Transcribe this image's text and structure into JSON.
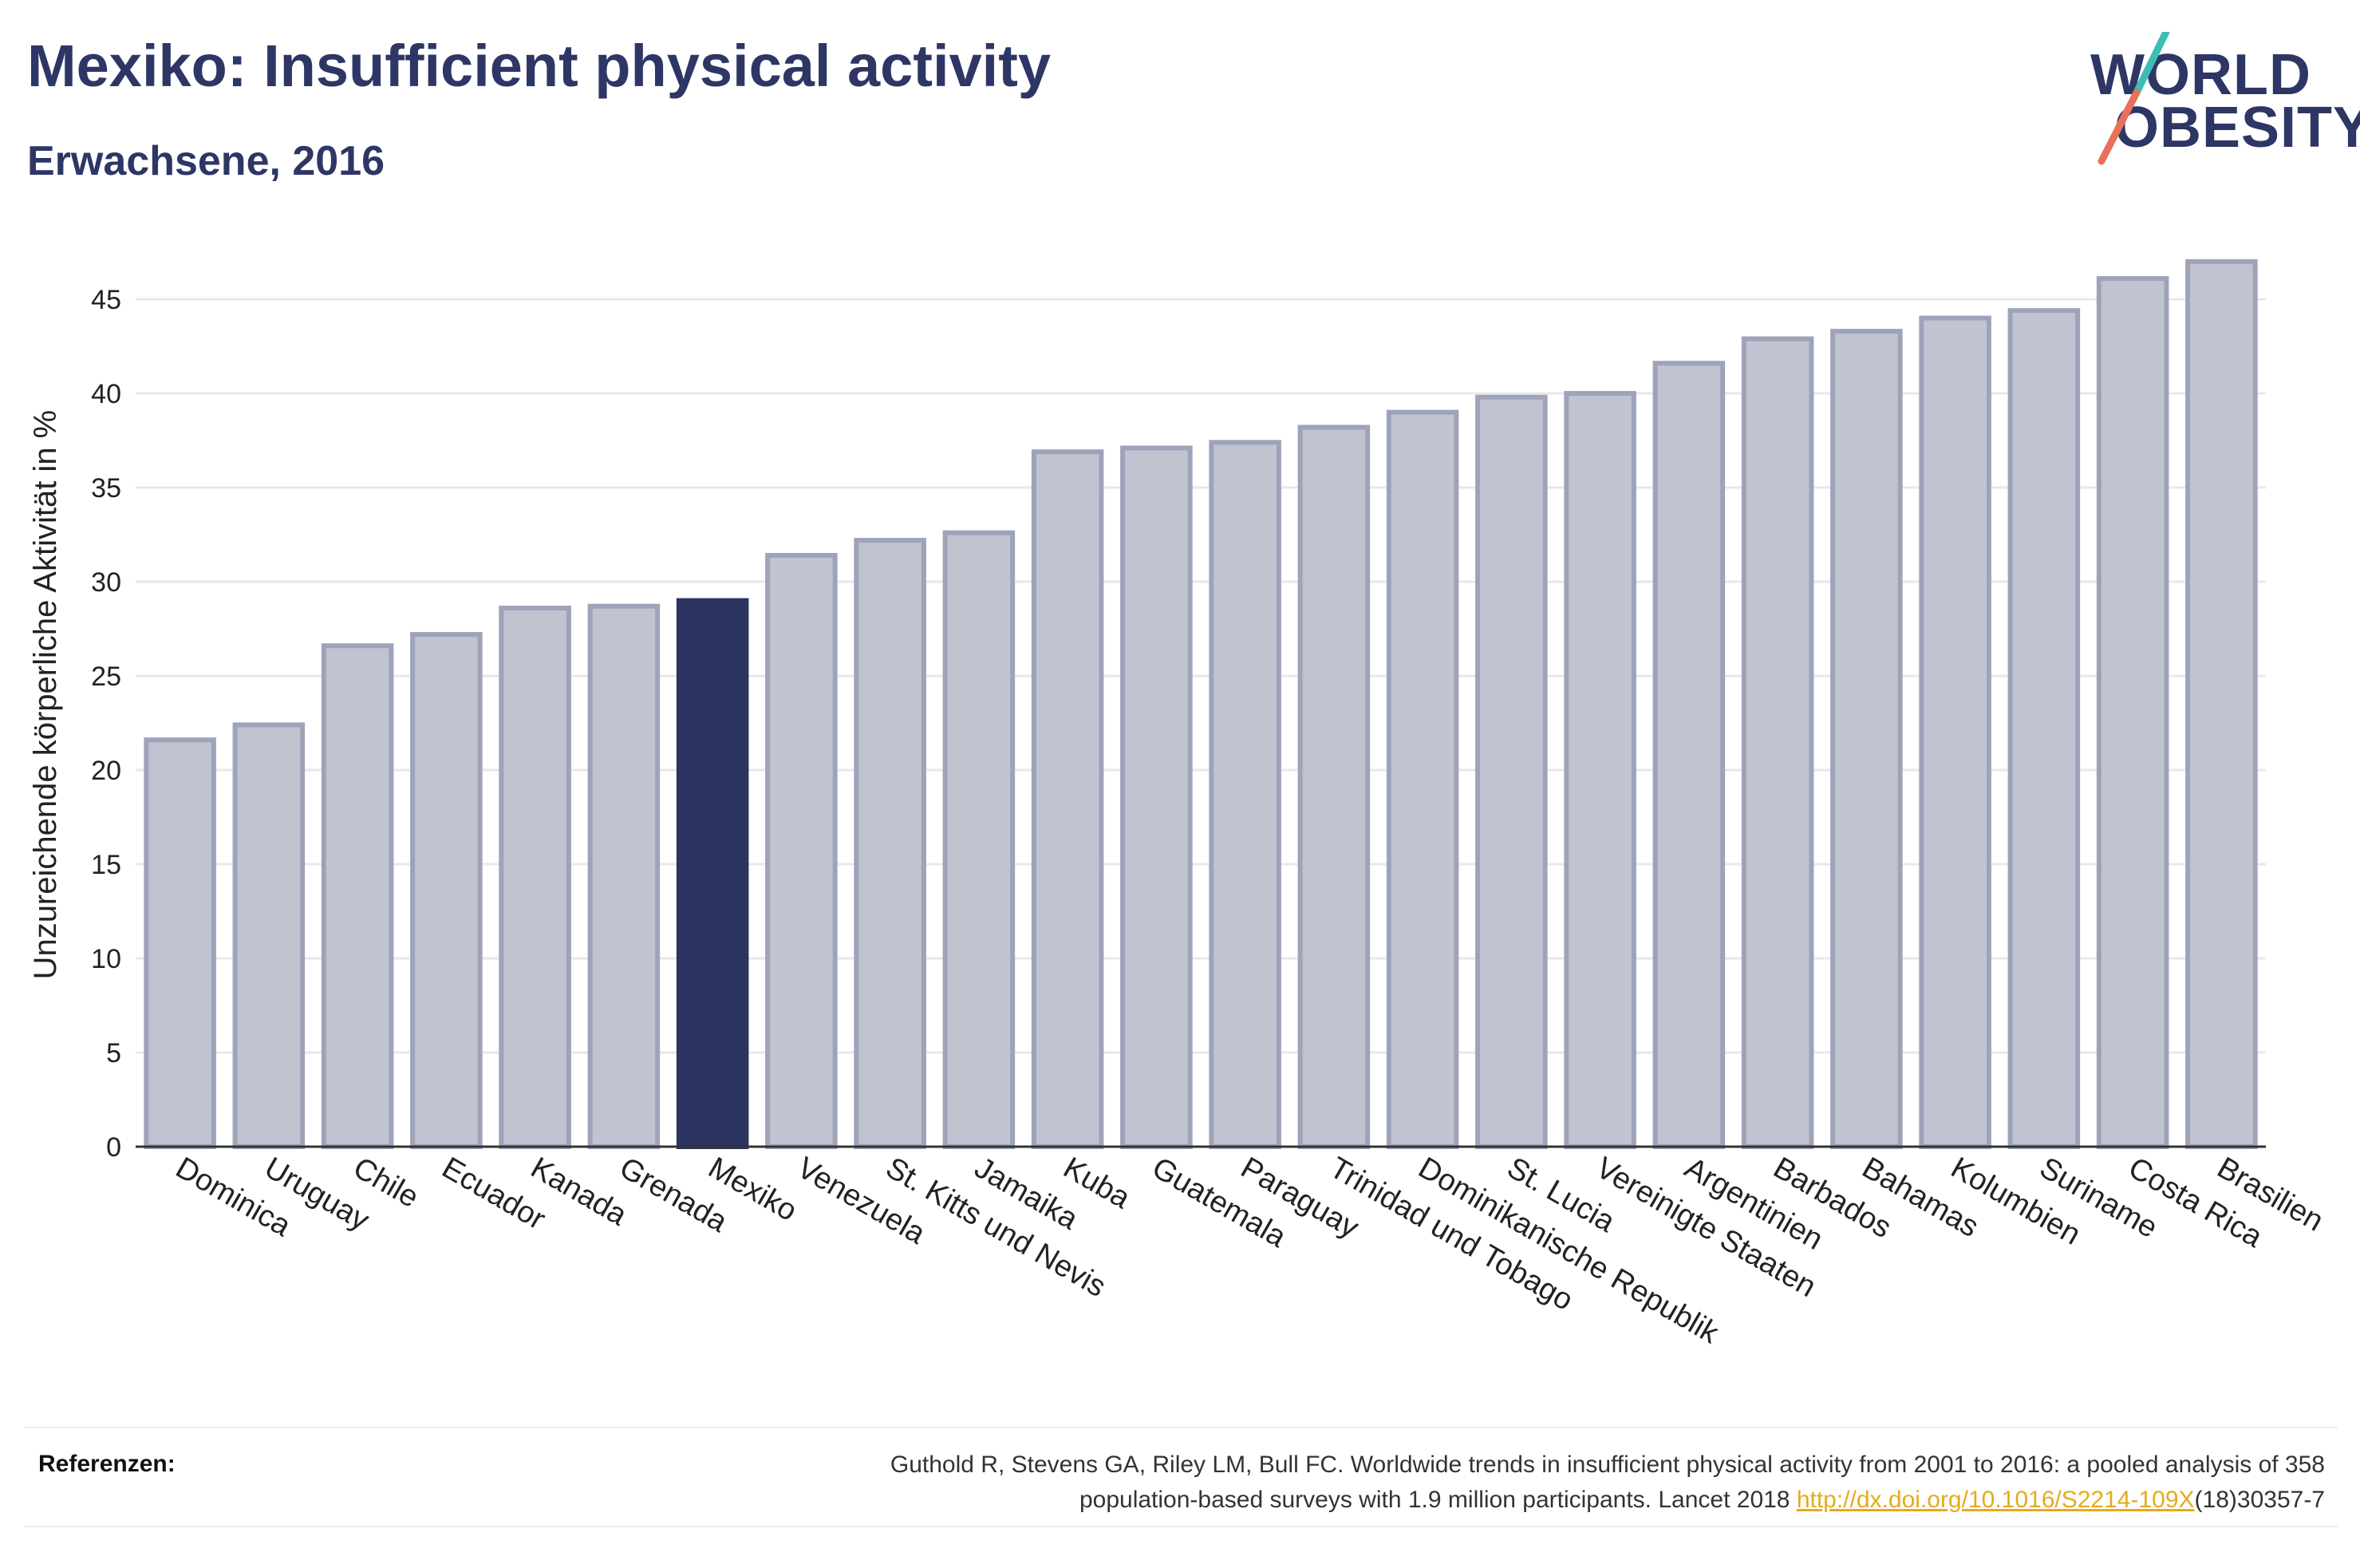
{
  "header": {
    "title": "Mexiko: Insufficient physical activity",
    "subtitle": "Erwachsene, 2016"
  },
  "logo": {
    "line1": "WORLD",
    "line2": "OBESITY",
    "accent_colors": [
      "#3dbdb4",
      "#e8715a"
    ]
  },
  "colors": {
    "bar_default": "#c0c3d0",
    "bar_border": "#9ea3ba",
    "bar_highlight": "#2b3360",
    "grid": "#e8e8ec",
    "axis": "#333333"
  },
  "chart_data": {
    "type": "bar",
    "title": "",
    "xlabel": "",
    "ylabel": "Unzureichende körperliche Aktivität in %",
    "ylim": [
      0,
      48
    ],
    "yticks": [
      0,
      5,
      10,
      15,
      20,
      25,
      30,
      35,
      40,
      45
    ],
    "grid": true,
    "highlight": "Mexiko",
    "categories": [
      "Dominica",
      "Uruguay",
      "Chile",
      "Ecuador",
      "Kanada",
      "Grenada",
      "Mexiko",
      "Venezuela",
      "St. Kitts und Nevis",
      "Jamaika",
      "Kuba",
      "Guatemala",
      "Paraguay",
      "Trinidad und Tobago",
      "Dominikanische Republik",
      "St. Lucia",
      "Vereinigte Staaten",
      "Argentinien",
      "Barbados",
      "Bahamas",
      "Kolumbien",
      "Suriname",
      "Costa Rica",
      "Brasilien"
    ],
    "values": [
      21.6,
      22.4,
      26.6,
      27.2,
      28.6,
      28.7,
      29.0,
      31.4,
      32.2,
      32.6,
      36.9,
      37.1,
      37.4,
      38.2,
      39.0,
      39.8,
      40.0,
      41.6,
      42.9,
      43.3,
      44.0,
      44.4,
      46.1,
      47.0
    ]
  },
  "footer": {
    "ref_label": "Referenzen:",
    "ref_line1": "Guthold R, Stevens GA, Riley LM, Bull FC. Worldwide trends in insufficient physical activity from 2001 to 2016: a pooled analysis of 358",
    "ref_line2_pre": "population-based surveys with 1.9 million participants. Lancet 2018 ",
    "ref_link": "http://dx.doi.org/10.1016/S2214-109X",
    "ref_line2_post": "(18)30357-7"
  }
}
